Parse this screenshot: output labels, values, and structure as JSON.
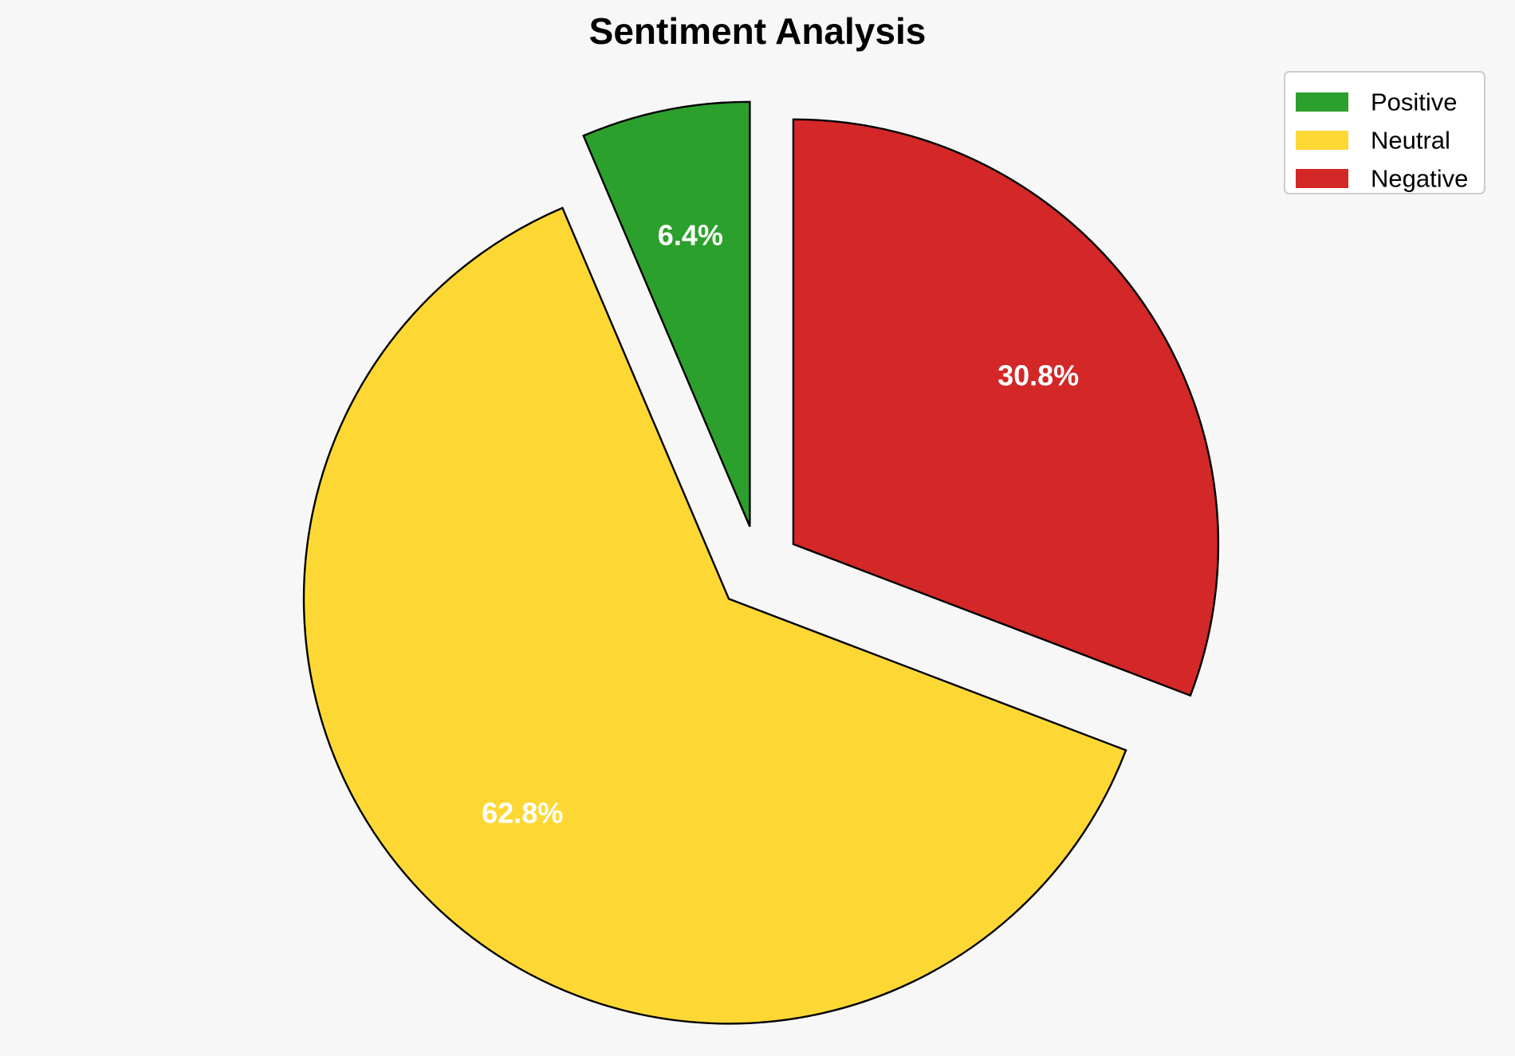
{
  "chart_data": {
    "type": "pie",
    "title": "Sentiment Analysis",
    "categories": [
      "Positive",
      "Neutral",
      "Negative"
    ],
    "values": [
      6.4,
      62.8,
      30.8
    ],
    "labels": [
      "6.4%",
      "62.8%",
      "30.8%"
    ],
    "colors": [
      "#2ca02c",
      "#fdd835",
      "#d32728"
    ],
    "legend_position": "top-right",
    "exploded": true
  }
}
